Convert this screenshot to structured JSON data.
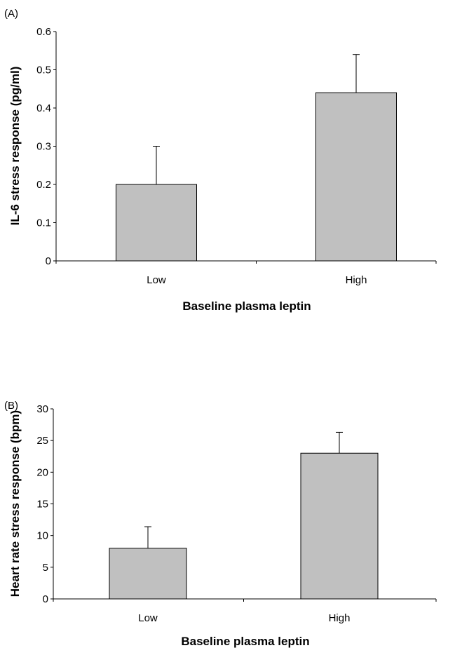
{
  "chart_data": [
    {
      "type": "bar",
      "panel_label": "(A)",
      "categories": [
        "Low",
        "High"
      ],
      "values": [
        0.2,
        0.44
      ],
      "error_upper": [
        0.3,
        0.54
      ],
      "ylabel": "IL-6 stress response (pg/ml)",
      "xlabel": "Baseline plasma leptin",
      "ylim": [
        0,
        0.6
      ],
      "yticks": [
        "0",
        "0.1",
        "0.2",
        "0.3",
        "0.4",
        "0.5",
        "0.6"
      ],
      "bar_color": "#c0c0c0",
      "grid": false
    },
    {
      "type": "bar",
      "panel_label": "(B)",
      "categories": [
        "Low",
        "High"
      ],
      "values": [
        8,
        23
      ],
      "error_upper": [
        11.4,
        26.3
      ],
      "ylabel": "Heart rate stress response (bpm)",
      "xlabel": "Baseline plasma leptin",
      "ylim": [
        0,
        30
      ],
      "yticks": [
        "0",
        "5",
        "10",
        "15",
        "20",
        "25",
        "30"
      ],
      "bar_color": "#c0c0c0",
      "grid": false
    }
  ]
}
